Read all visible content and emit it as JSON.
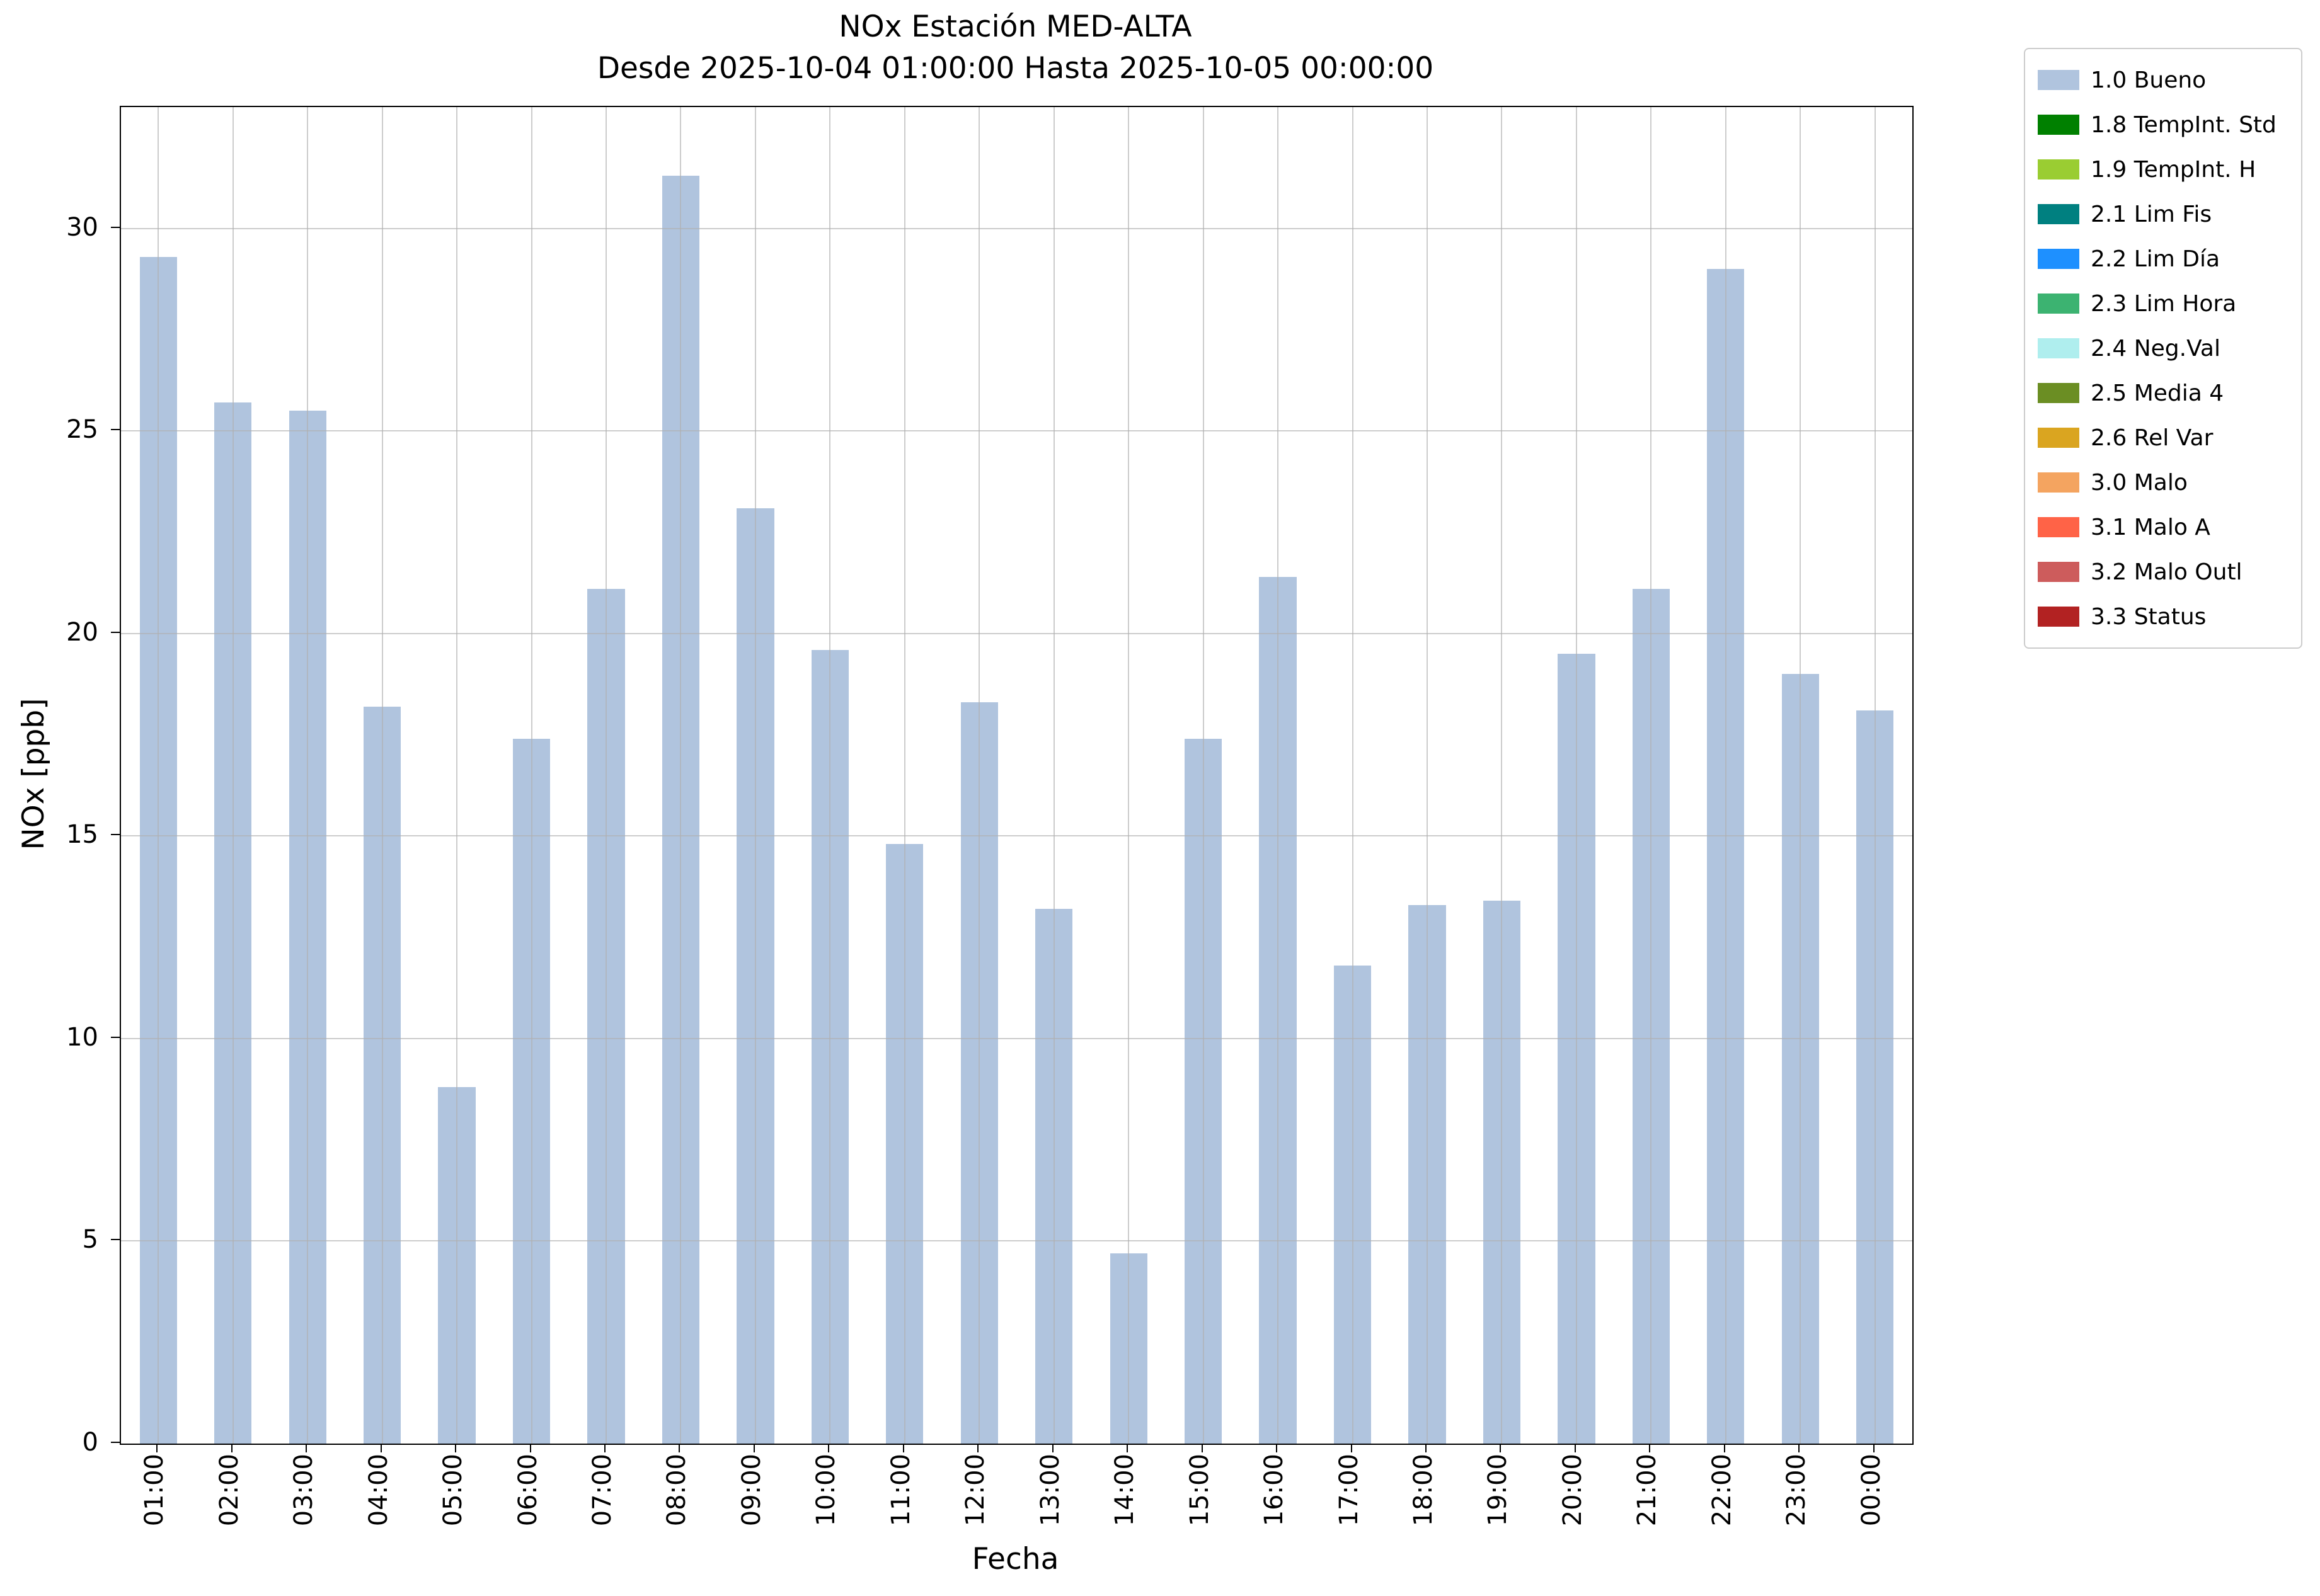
{
  "figure": {
    "title": "NOx Estación MED-ALTA",
    "subtitle": "Desde 2025-10-04 01:00:00 Hasta 2025-10-05 00:00:00"
  },
  "chart_data": {
    "type": "bar",
    "title": "NOx Estación MED-ALTA",
    "subtitle": "Desde 2025-10-04 01:00:00 Hasta 2025-10-05 00:00:00",
    "xlabel": "Fecha",
    "ylabel": "NOx [ppb]",
    "ylim": [
      0,
      33
    ],
    "yticks": [
      0,
      5,
      10,
      15,
      20,
      25,
      30
    ],
    "grid": true,
    "grid_color": "#b0b0b0",
    "bar_color": "#b0c4de",
    "bar_width_frac": 0.5,
    "series_name": "1.0 Bueno",
    "legend_position": "outside-upper-right",
    "categories": [
      "01:00",
      "02:00",
      "03:00",
      "04:00",
      "05:00",
      "06:00",
      "07:00",
      "08:00",
      "09:00",
      "10:00",
      "11:00",
      "12:00",
      "13:00",
      "14:00",
      "15:00",
      "16:00",
      "17:00",
      "18:00",
      "19:00",
      "20:00",
      "21:00",
      "22:00",
      "23:00",
      "00:00"
    ],
    "values": [
      29.3,
      25.7,
      25.5,
      18.2,
      8.8,
      17.4,
      21.1,
      31.3,
      23.1,
      19.6,
      14.8,
      18.3,
      13.2,
      4.7,
      17.4,
      21.4,
      11.8,
      13.3,
      13.4,
      19.5,
      21.1,
      29.0,
      19.0,
      18.1
    ],
    "legend": [
      {
        "label": "1.0 Bueno",
        "color": "#b0c4de"
      },
      {
        "label": "1.8 TempInt. Std",
        "color": "#008000"
      },
      {
        "label": "1.9 TempInt. H",
        "color": "#9acd32"
      },
      {
        "label": "2.1 Lim Fis",
        "color": "#008080"
      },
      {
        "label": "2.2 Lim Día",
        "color": "#1e90ff"
      },
      {
        "label": "2.3 Lim Hora",
        "color": "#3cb371"
      },
      {
        "label": "2.4 Neg.Val",
        "color": "#afeeee"
      },
      {
        "label": "2.5 Media 4",
        "color": "#6b8e23"
      },
      {
        "label": "2.6 Rel Var",
        "color": "#daa520"
      },
      {
        "label": "3.0 Malo",
        "color": "#f4a460"
      },
      {
        "label": "3.1 Malo A",
        "color": "#ff6347"
      },
      {
        "label": "3.2 Malo Outl",
        "color": "#cd5c5c"
      },
      {
        "label": "3.3 Status",
        "color": "#b22222"
      }
    ]
  }
}
